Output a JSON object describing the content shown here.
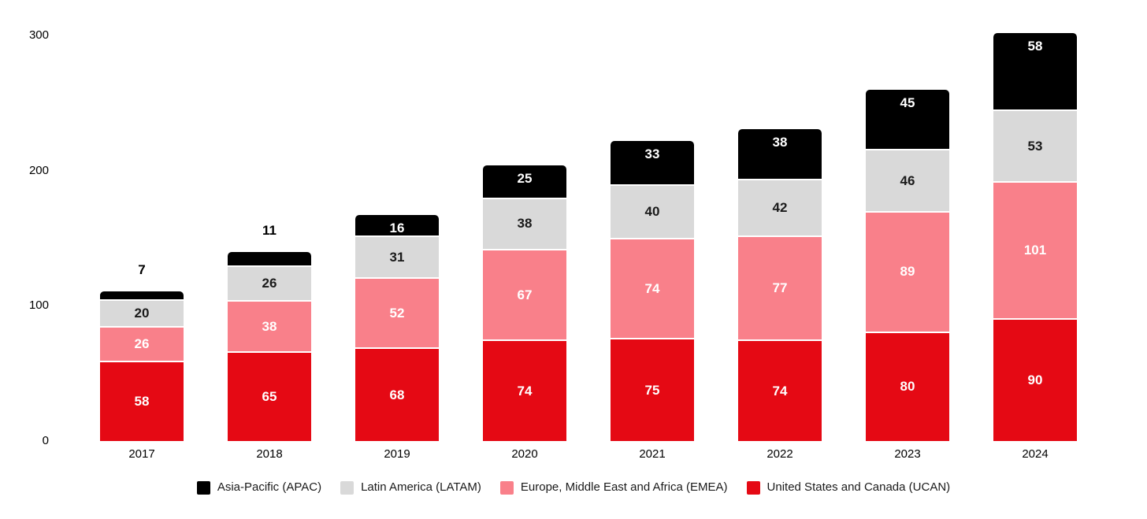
{
  "chart_data": {
    "type": "bar",
    "stacked": true,
    "title": "",
    "xlabel": "",
    "ylabel": "",
    "categories": [
      "2017",
      "2018",
      "2019",
      "2020",
      "2021",
      "2022",
      "2023",
      "2024"
    ],
    "series": [
      {
        "name": "United States and Canada (UCAN)",
        "color": "#E50914",
        "label_color": "#ffffff",
        "values": [
          58,
          65,
          68,
          74,
          75,
          74,
          80,
          90
        ]
      },
      {
        "name": "Europe, Middle East and Africa (EMEA)",
        "color": "#F9808A",
        "label_color": "#ffffff",
        "values": [
          26,
          38,
          52,
          67,
          74,
          77,
          89,
          101
        ]
      },
      {
        "name": "Latin America (LATAM)",
        "color": "#D9D9D9",
        "label_color": "#1a1a1a",
        "values": [
          20,
          26,
          31,
          38,
          40,
          42,
          46,
          53
        ]
      },
      {
        "name": "Asia-Pacific (APAC)",
        "color": "#000000",
        "label_color": "#ffffff",
        "values": [
          7,
          11,
          16,
          25,
          33,
          38,
          45,
          58
        ]
      }
    ],
    "yticks": [
      0,
      100,
      200,
      300
    ],
    "ylim": [
      0,
      300
    ],
    "grid": false,
    "legend_position": "bottom",
    "legend_order": [
      "Asia-Pacific (APAC)",
      "Latin America (LATAM)",
      "Europe, Middle East and Africa (EMEA)",
      "United States and Canada (UCAN)"
    ],
    "background": "#ffffff"
  }
}
